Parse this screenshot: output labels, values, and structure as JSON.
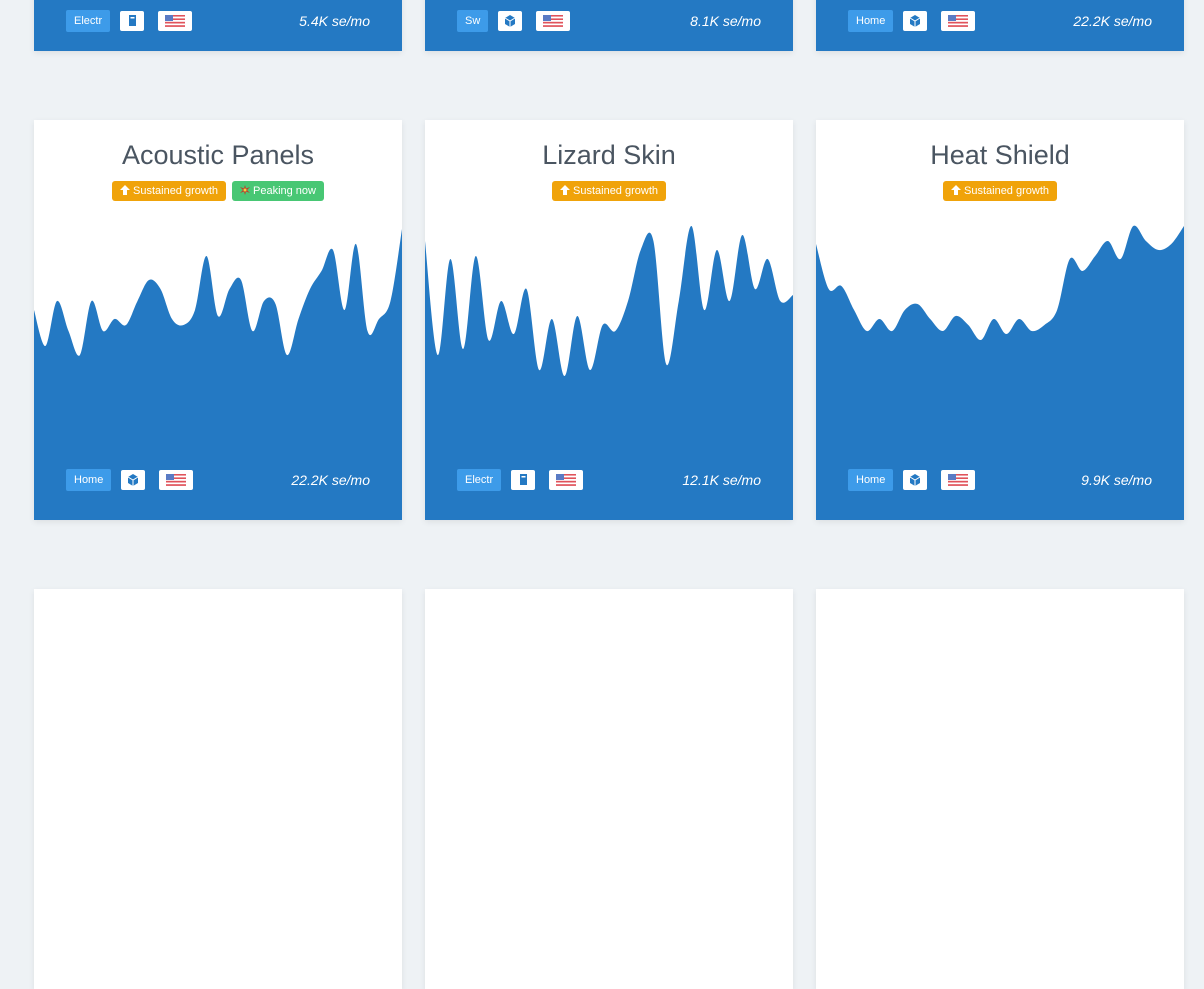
{
  "top_cards": [
    {
      "category": "Electr",
      "searches": "5.4K se/mo"
    },
    {
      "category": "Sw",
      "searches": "8.1K se/mo"
    },
    {
      "category": "Home",
      "searches": "22.2K se/mo"
    }
  ],
  "chart_data": [
    {
      "type": "area",
      "title": "Acoustic Panels",
      "color": "#2479c3",
      "ylim": [
        0,
        100
      ],
      "values": [
        70,
        58,
        73,
        63,
        55,
        73,
        63,
        67,
        65,
        73,
        80,
        77,
        67,
        65,
        70,
        88,
        68,
        77,
        80,
        63,
        73,
        72,
        55,
        67,
        77,
        83,
        90,
        70,
        92,
        63,
        67,
        73,
        97
      ]
    },
    {
      "type": "area",
      "title": "Lizard Skin",
      "color": "#2479c3",
      "ylim": [
        0,
        100
      ],
      "values": [
        93,
        55,
        87,
        57,
        88,
        60,
        73,
        62,
        77,
        50,
        67,
        48,
        68,
        50,
        65,
        63,
        73,
        90,
        93,
        52,
        73,
        98,
        70,
        90,
        73,
        95,
        77,
        87,
        73,
        75
      ]
    },
    {
      "type": "area",
      "title": "Heat Shield",
      "color": "#2479c3",
      "ylim": [
        0,
        100
      ],
      "values": [
        92,
        77,
        78,
        70,
        63,
        67,
        63,
        70,
        72,
        67,
        63,
        68,
        65,
        60,
        67,
        62,
        67,
        63,
        65,
        70,
        87,
        83,
        88,
        93,
        87,
        98,
        93,
        90,
        92,
        98
      ]
    }
  ],
  "cards": [
    {
      "badges": [
        {
          "text": "Sustained growth",
          "kind": "growth"
        },
        {
          "text": "Peaking now",
          "kind": "peak"
        }
      ],
      "category": "Home",
      "searches": "22.2K se/mo"
    },
    {
      "badges": [
        {
          "text": "Sustained growth",
          "kind": "growth"
        }
      ],
      "category": "Electr",
      "searches": "12.1K se/mo"
    },
    {
      "badges": [
        {
          "text": "Sustained growth",
          "kind": "growth"
        }
      ],
      "category": "Home",
      "searches": "9.9K se/mo"
    }
  ]
}
